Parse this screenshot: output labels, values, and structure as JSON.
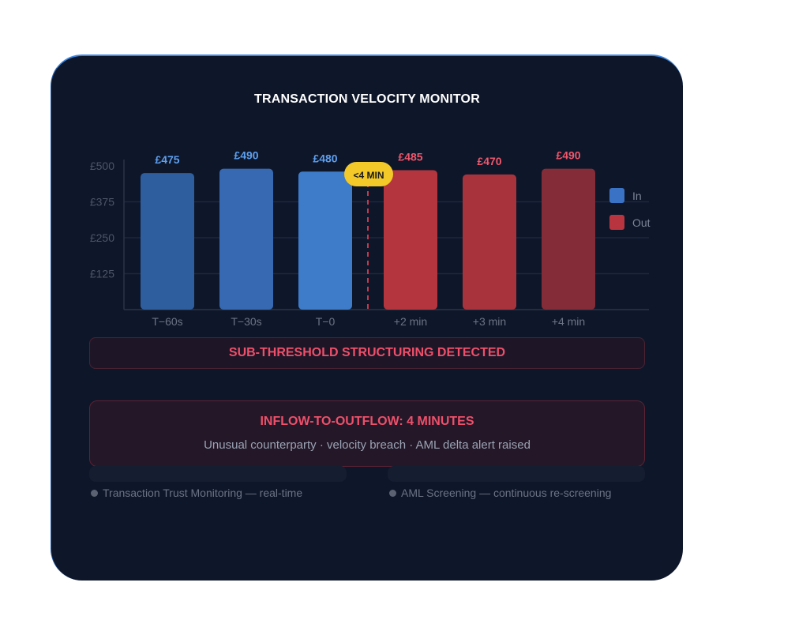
{
  "chart_data": {
    "type": "bar",
    "title": "TRANSACTION VELOCITY MONITOR",
    "categories": [
      "T−60s",
      "T−30s",
      "T−0",
      "+2 min",
      "+3 min",
      "+4 min"
    ],
    "values": [
      475,
      490,
      480,
      485,
      470,
      490
    ],
    "value_labels": [
      "£475",
      "£490",
      "£480",
      "£485",
      "£470",
      "£490"
    ],
    "groups": [
      "In",
      "In",
      "In",
      "Out",
      "Out",
      "Out"
    ],
    "legend": [
      {
        "name": "In",
        "color": "#3a73c6"
      },
      {
        "name": "Out",
        "color": "#b8353f"
      }
    ],
    "bar_colors": [
      "#2f5e9e",
      "#3669b1",
      "#3e7cc9",
      "#b5353e",
      "#a8333d",
      "#842c38"
    ],
    "value_label_colors": [
      "#5ea0f0",
      "#5ea0f0",
      "#5ea0f0",
      "#f0576c",
      "#f0576c",
      "#f0576c"
    ],
    "y_ticks": [
      125,
      250,
      375,
      500
    ],
    "y_tick_labels": [
      "£125",
      "£250",
      "£375",
      "£500"
    ],
    "ylim": [
      0,
      500
    ],
    "grid": true,
    "legend_position": "right",
    "annotation": {
      "text": "<4 MIN",
      "between": [
        "T−0",
        "+2 min"
      ],
      "color": "#f2c928"
    }
  },
  "banner": "SUB-THRESHOLD STRUCTURING DETECTED",
  "alert": {
    "title": "INFLOW-TO-OUTFLOW: 4 MINUTES",
    "subtitle": "Unusual counterparty · velocity breach · AML delta alert raised"
  },
  "status": {
    "left": "Transaction Trust Monitoring — real-time",
    "right": "AML Screening — continuous re-screening"
  }
}
